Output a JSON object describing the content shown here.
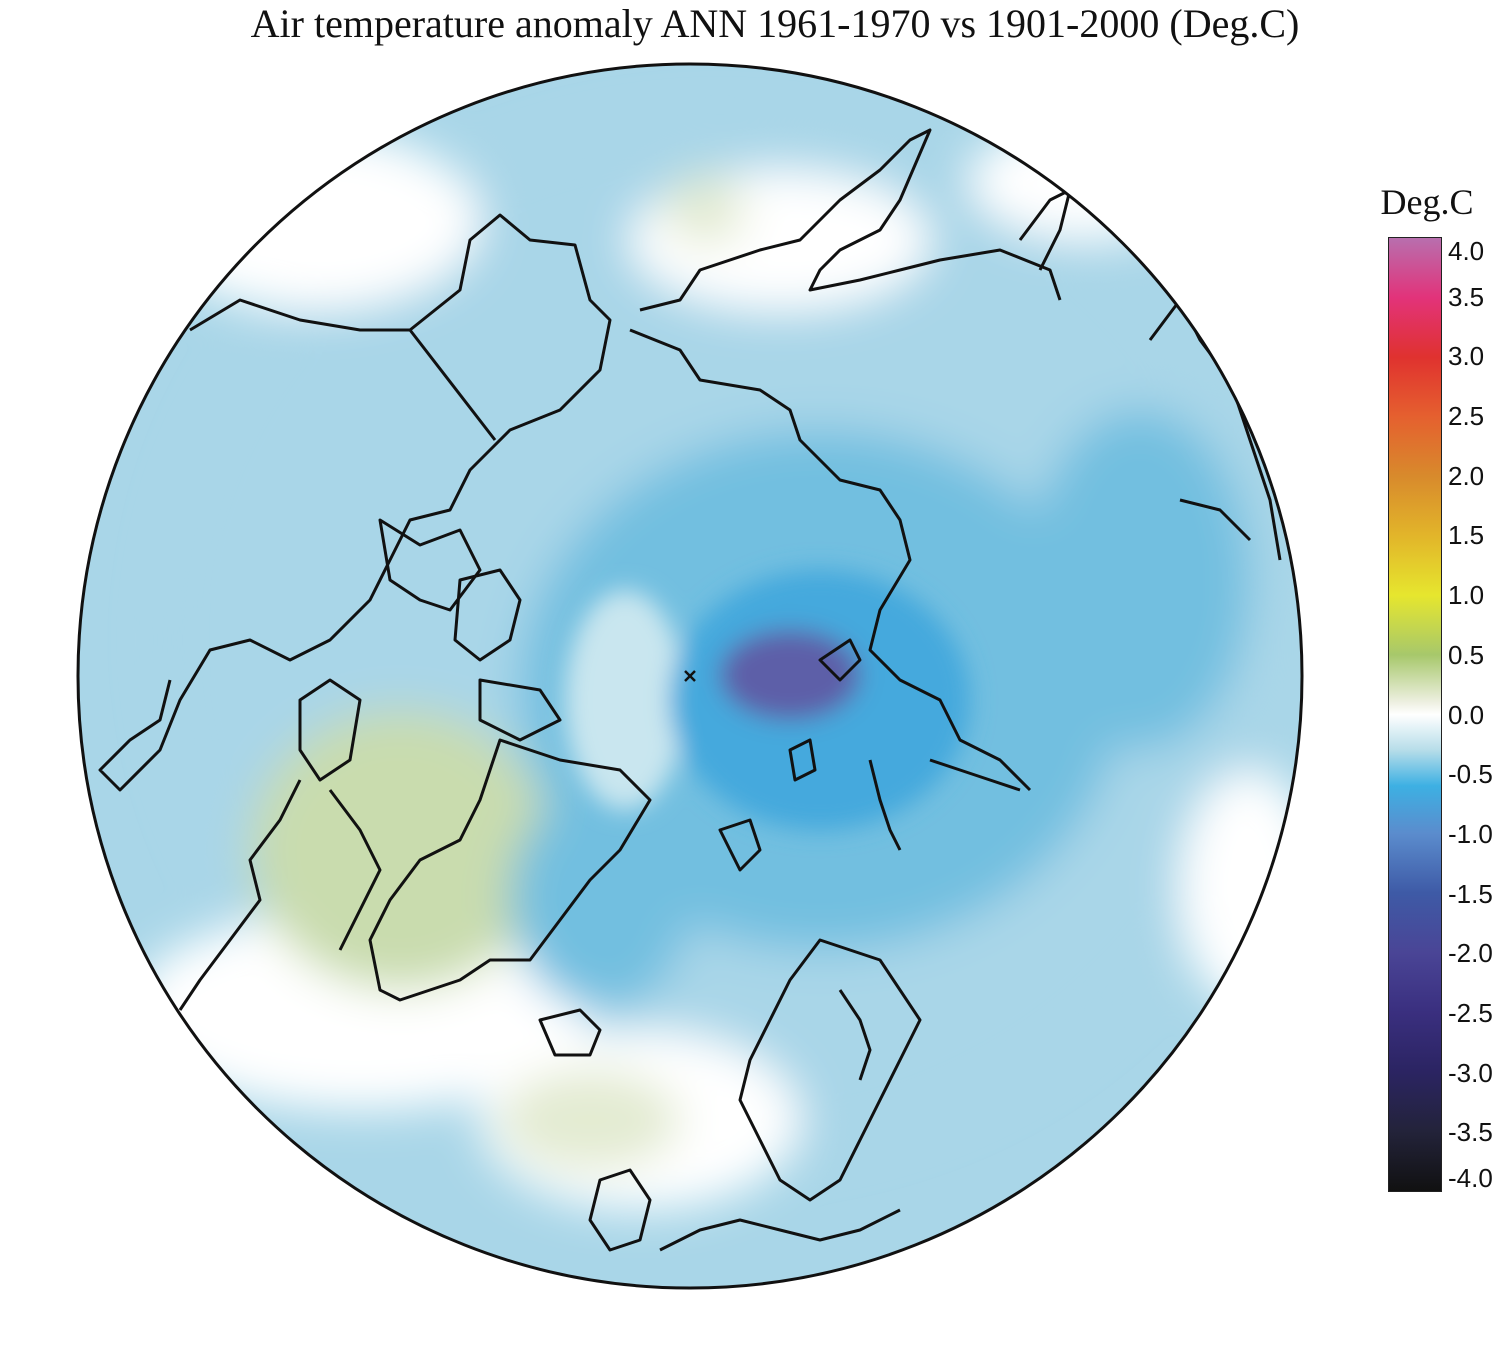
{
  "title": "Air temperature anomaly ANN 1961-1970 vs 1901-2000 (Deg.C)",
  "legend": {
    "unit": "Deg.C",
    "ticks": [
      "4.0",
      "3.5",
      "3.0",
      "2.5",
      "2.0",
      "1.5",
      "1.0",
      "0.5",
      "0.0",
      "-0.5",
      "-1.0",
      "-1.5",
      "-2.0",
      "-2.5",
      "-3.0",
      "-3.5",
      "-4.0"
    ],
    "range": [
      -4.0,
      4.0
    ],
    "stops": [
      {
        "value": 4.0,
        "color": "#b86fae"
      },
      {
        "value": 3.5,
        "color": "#e2337a"
      },
      {
        "value": 3.0,
        "color": "#e0322f"
      },
      {
        "value": 2.5,
        "color": "#e5602f"
      },
      {
        "value": 2.0,
        "color": "#d88a2c"
      },
      {
        "value": 1.5,
        "color": "#e2b52a"
      },
      {
        "value": 1.0,
        "color": "#e6e62e"
      },
      {
        "value": 0.5,
        "color": "#a7c86b"
      },
      {
        "value": 0.1,
        "color": "#eef0e2"
      },
      {
        "value": 0.0,
        "color": "#ffffff"
      },
      {
        "value": -0.3,
        "color": "#b6dde9"
      },
      {
        "value": -0.6,
        "color": "#3db0e3"
      },
      {
        "value": -1.0,
        "color": "#5b8ccd"
      },
      {
        "value": -1.5,
        "color": "#3e5aa6"
      },
      {
        "value": -2.0,
        "color": "#4a4596"
      },
      {
        "value": -2.5,
        "color": "#3a2f7f"
      },
      {
        "value": -3.0,
        "color": "#2b2462"
      },
      {
        "value": -3.5,
        "color": "#23233a"
      },
      {
        "value": -4.0,
        "color": "#111111"
      }
    ]
  },
  "map": {
    "projection": "north polar stereographic",
    "colors": {
      "base": "#a9d6e8",
      "light": "#c9e6ef",
      "white": "#ffffff",
      "green_light": "#e3ebd2",
      "green": "#c9dcae",
      "blue_mid": "#72bfe0",
      "blue": "#45a9dd",
      "blue_deep": "#5a7fc4",
      "purple": "#5d5fa8",
      "coast": "#111111"
    }
  }
}
